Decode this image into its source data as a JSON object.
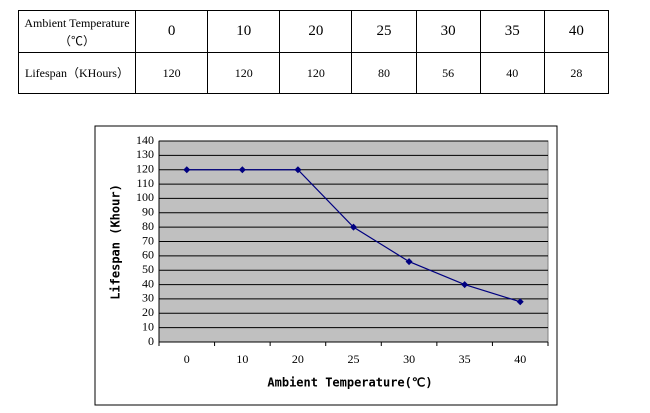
{
  "table": {
    "rows": [
      [
        "Ambient Temperature（℃）",
        0,
        10,
        20,
        25,
        30,
        35,
        40
      ],
      [
        "Lifespan（KHours）",
        120,
        120,
        120,
        80,
        56,
        40,
        28
      ]
    ]
  },
  "chart_data": {
    "type": "line",
    "x_label": "Ambient Temperature(℃)",
    "y_label": "Lifespan (Khour)",
    "categories": [
      "0",
      "10",
      "20",
      "25",
      "30",
      "35",
      "40"
    ],
    "values": [
      120,
      120,
      120,
      80,
      56,
      40,
      28
    ],
    "color": "#000080",
    "ylim": [
      0,
      140
    ],
    "yticks": [
      0,
      10,
      20,
      30,
      40,
      50,
      60,
      70,
      80,
      90,
      100,
      110,
      120,
      130,
      140
    ],
    "grid": true,
    "background": "#c0c0c0"
  }
}
